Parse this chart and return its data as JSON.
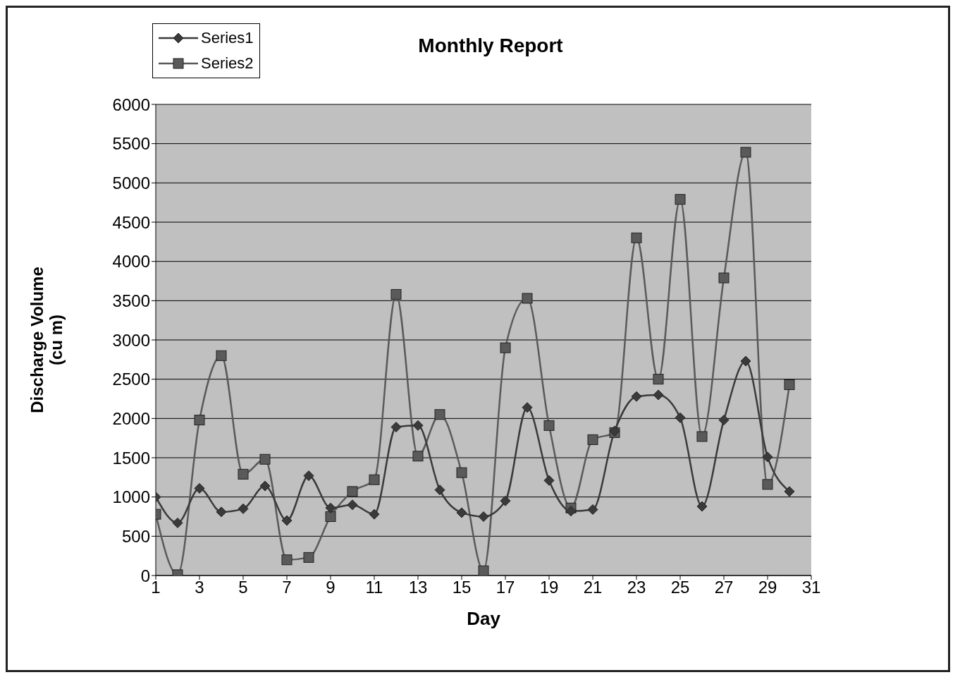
{
  "chart_data": {
    "type": "line",
    "title": "Monthly Report",
    "xlabel": "Day",
    "ylabel": "Discharge Volume\n(cu m)",
    "x": [
      1,
      2,
      3,
      4,
      5,
      6,
      7,
      8,
      9,
      10,
      11,
      12,
      13,
      14,
      15,
      16,
      17,
      18,
      19,
      20,
      21,
      22,
      23,
      24,
      25,
      26,
      27,
      28,
      29,
      30
    ],
    "xlim": [
      1,
      31
    ],
    "xticks": [
      1,
      3,
      5,
      7,
      9,
      11,
      13,
      15,
      17,
      19,
      21,
      23,
      25,
      27,
      29,
      31
    ],
    "ylim": [
      0,
      6000
    ],
    "yticks": [
      0,
      500,
      1000,
      1500,
      2000,
      2500,
      3000,
      3500,
      4000,
      4500,
      5000,
      5500,
      6000
    ],
    "grid": "y",
    "legend": "top left",
    "series": [
      {
        "name": "Series1",
        "color": "#3a3a3a",
        "marker": "diamond",
        "values": [
          1000,
          670,
          1110,
          810,
          850,
          1140,
          700,
          1270,
          860,
          900,
          780,
          1890,
          1910,
          1090,
          800,
          750,
          950,
          2140,
          1210,
          820,
          840,
          1840,
          2280,
          2300,
          2010,
          880,
          1980,
          2730,
          1510,
          1070
        ]
      },
      {
        "name": "Series2",
        "color": "#5a5a5a",
        "marker": "square",
        "values": [
          780,
          10,
          1980,
          2800,
          1290,
          1480,
          200,
          230,
          750,
          1070,
          1220,
          3580,
          1520,
          2050,
          1310,
          60,
          2900,
          3530,
          1910,
          860,
          1730,
          1820,
          4300,
          2500,
          4790,
          1770,
          3790,
          5390,
          1160,
          2430
        ]
      }
    ]
  }
}
